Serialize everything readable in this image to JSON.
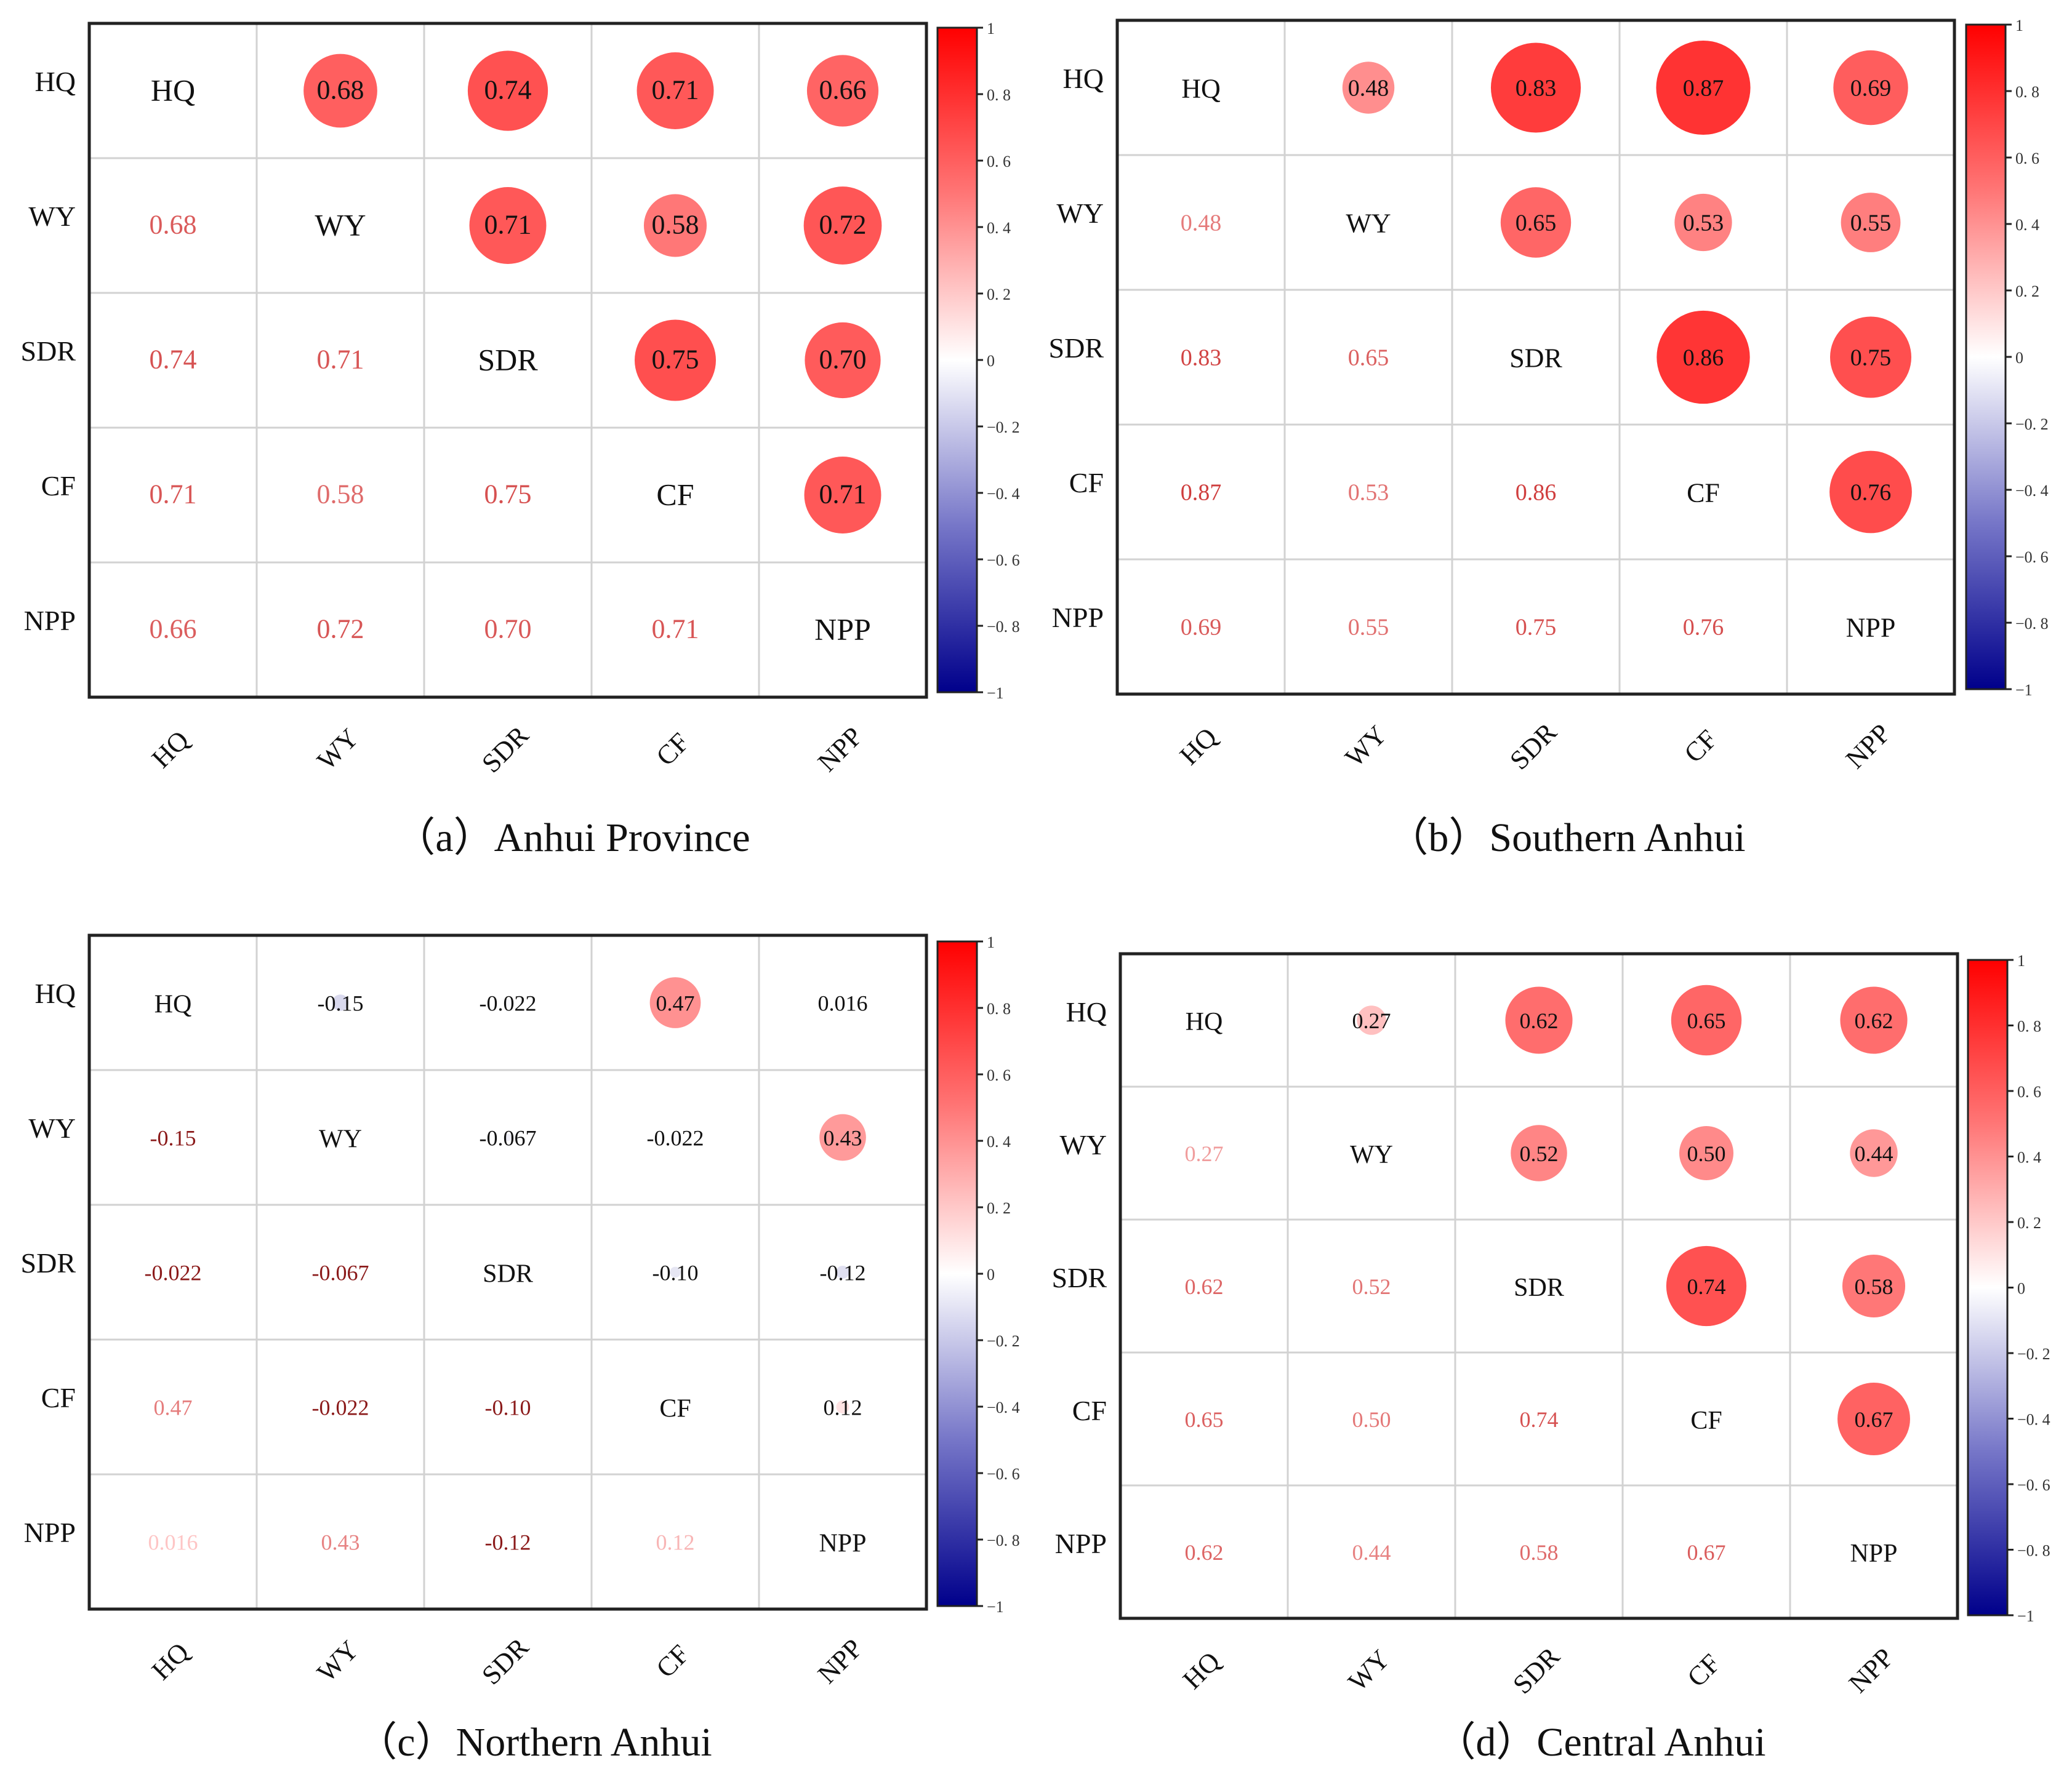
{
  "chart_data": [
    {
      "type": "heatmap",
      "panel": "a",
      "title": "（a）Anhui Province",
      "variables": [
        "HQ",
        "WY",
        "SDR",
        "CF",
        "NPP"
      ],
      "values": [
        [
          "",
          "0.68",
          "0.74",
          "0.71",
          "0.66"
        ],
        [
          "0.68",
          "",
          "0.71",
          "0.58",
          "0.72"
        ],
        [
          "0.74",
          "0.71",
          "",
          "0.75",
          "0.70"
        ],
        [
          "0.71",
          "0.58",
          "0.75",
          "",
          "0.71"
        ],
        [
          "0.66",
          "0.72",
          "0.70",
          "0.71",
          ""
        ]
      ],
      "upper_triangle": "circles",
      "lower_triangle": "numbers",
      "colorbar": {
        "range": [
          -1,
          1
        ],
        "ticks": [
          "1",
          "0. 8",
          "0. 6",
          "0. 4",
          "0. 2",
          "0",
          "−0. 2",
          "−0. 4",
          "−0. 6",
          "−0. 8",
          "−1"
        ]
      }
    },
    {
      "type": "heatmap",
      "panel": "b",
      "title": "（b）Southern Anhui",
      "variables": [
        "HQ",
        "WY",
        "SDR",
        "CF",
        "NPP"
      ],
      "values": [
        [
          "",
          "0.48",
          "0.83",
          "0.87",
          "0.69"
        ],
        [
          "0.48",
          "",
          "0.65",
          "0.53",
          "0.55"
        ],
        [
          "0.83",
          "0.65",
          "",
          "0.86",
          "0.75"
        ],
        [
          "0.87",
          "0.53",
          "0.86",
          "",
          "0.76"
        ],
        [
          "0.69",
          "0.55",
          "0.75",
          "0.76",
          ""
        ]
      ],
      "upper_triangle": "circles",
      "lower_triangle": "numbers",
      "colorbar": {
        "range": [
          -1,
          1
        ],
        "ticks": [
          "1",
          "0. 8",
          "0. 6",
          "0. 4",
          "0. 2",
          "0",
          "−0. 2",
          "−0. 4",
          "−0. 6",
          "−0. 8",
          "−1"
        ]
      }
    },
    {
      "type": "heatmap",
      "panel": "c",
      "title": "（c）Northern Anhui",
      "variables": [
        "HQ",
        "WY",
        "SDR",
        "CF",
        "NPP"
      ],
      "values": [
        [
          "",
          "-0.15",
          "-0.022",
          "0.47",
          "0.016"
        ],
        [
          "-0.15",
          "",
          "-0.067",
          "-0.022",
          "0.43"
        ],
        [
          "-0.022",
          "-0.067",
          "",
          "-0.10",
          "-0.12"
        ],
        [
          "0.47",
          "-0.022",
          "-0.10",
          "",
          "0.12"
        ],
        [
          "0.016",
          "0.43",
          "-0.12",
          "0.12",
          ""
        ]
      ],
      "upper_triangle": "circles",
      "lower_triangle": "numbers",
      "colorbar": {
        "range": [
          -1,
          1
        ],
        "ticks": [
          "1",
          "0. 8",
          "0. 6",
          "0. 4",
          "0. 2",
          "0",
          "−0. 2",
          "−0. 4",
          "−0. 6",
          "−0. 8",
          "−1"
        ]
      }
    },
    {
      "type": "heatmap",
      "panel": "d",
      "title": "（d）Central Anhui",
      "variables": [
        "HQ",
        "WY",
        "SDR",
        "CF",
        "NPP"
      ],
      "values": [
        [
          "",
          "0.27",
          "0.62",
          "0.65",
          "0.62"
        ],
        [
          "0.27",
          "",
          "0.52",
          "0.50",
          "0.44"
        ],
        [
          "0.62",
          "0.52",
          "",
          "0.74",
          "0.58"
        ],
        [
          "0.65",
          "0.50",
          "0.74",
          "",
          "0.67"
        ],
        [
          "0.62",
          "0.44",
          "0.58",
          "0.67",
          ""
        ]
      ],
      "upper_triangle": "circles",
      "lower_triangle": "numbers",
      "colorbar": {
        "range": [
          -1,
          1
        ],
        "ticks": [
          "1",
          "0. 8",
          "0. 6",
          "0. 4",
          "0. 2",
          "0",
          "−0. 2",
          "−0. 4",
          "−0. 6",
          "−0. 8",
          "−1"
        ]
      }
    }
  ]
}
